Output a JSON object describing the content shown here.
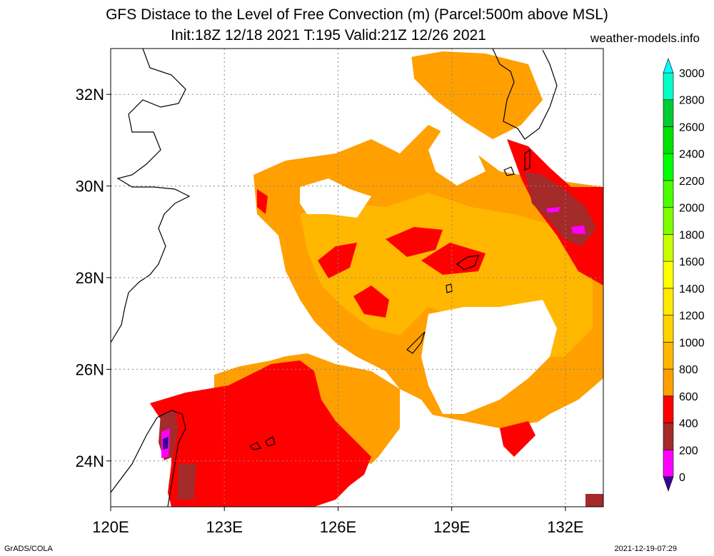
{
  "header": {
    "title_line1": "GFS Distace to the Level of Free Convection (m) (Parcel:500m above MSL)",
    "title_line2": "Init:18Z 12/18 2021 T:195 Valid:21Z 12/26 2021",
    "site": "weather-models.info"
  },
  "map": {
    "lon_range": [
      120,
      133
    ],
    "lat_range": [
      23,
      33
    ],
    "lat_ticks": [
      {
        "value": 24,
        "label": "24N"
      },
      {
        "value": 26,
        "label": "26N"
      },
      {
        "value": 28,
        "label": "28N"
      },
      {
        "value": 30,
        "label": "30N"
      },
      {
        "value": 32,
        "label": "32N"
      }
    ],
    "lon_ticks": [
      {
        "value": 120,
        "label": "120E"
      },
      {
        "value": 123,
        "label": "123E"
      },
      {
        "value": 126,
        "label": "126E"
      },
      {
        "value": 129,
        "label": "129E"
      },
      {
        "value": 132,
        "label": "132E"
      }
    ],
    "grid": "dotted"
  },
  "colorbar": {
    "bins": [
      {
        "value": 0,
        "color": "#3c0096"
      },
      {
        "value": 200,
        "color": "#ff00ff"
      },
      {
        "value": 400,
        "color": "#a52a2a"
      },
      {
        "value": 600,
        "color": "#ff0000"
      },
      {
        "value": 800,
        "color": "#ff9f00"
      },
      {
        "value": 1000,
        "color": "#ffb700"
      },
      {
        "value": 1200,
        "color": "#ffd200"
      },
      {
        "value": 1400,
        "color": "#ffe900"
      },
      {
        "value": 1600,
        "color": "#ffff00"
      },
      {
        "value": 1800,
        "color": "#c8ff00"
      },
      {
        "value": 2000,
        "color": "#7eff00"
      },
      {
        "value": 2200,
        "color": "#4cff00"
      },
      {
        "value": 2400,
        "color": "#00ff00"
      },
      {
        "value": 2600,
        "color": "#00e200"
      },
      {
        "value": 2800,
        "color": "#00cc33"
      },
      {
        "value": 3000,
        "color": "#00ffc8"
      }
    ],
    "bottom_arrow_color": "#3c0096",
    "top_arrow_color": "#00ffff",
    "tick_labels": [
      "0",
      "200",
      "400",
      "600",
      "800",
      "1000",
      "1200",
      "1400",
      "1600",
      "1800",
      "2000",
      "2200",
      "2400",
      "2600",
      "2800",
      "3000"
    ]
  },
  "footer": {
    "left": "GrADS/COLA",
    "right": "2021-12-19-07:29"
  }
}
